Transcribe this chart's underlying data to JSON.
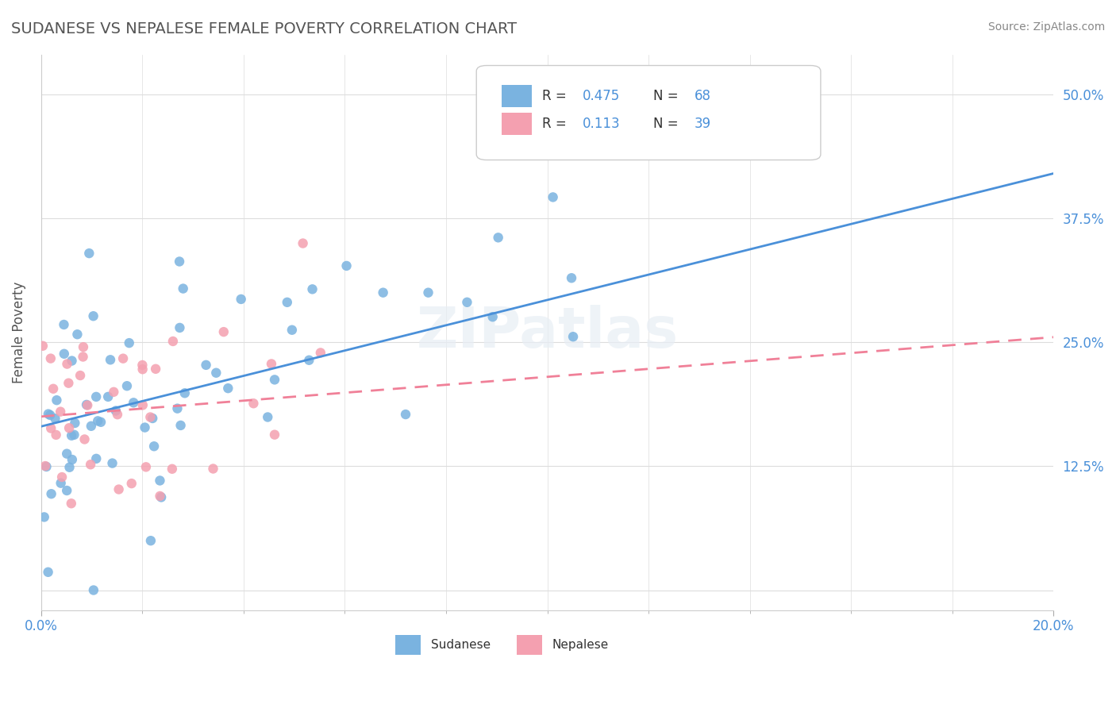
{
  "title": "SUDANESE VS NEPALESE FEMALE POVERTY CORRELATION CHART",
  "source": "Source: ZipAtlas.com",
  "xlabel": "",
  "ylabel": "Female Poverty",
  "xlim": [
    0.0,
    0.2
  ],
  "ylim": [
    -0.02,
    0.54
  ],
  "yticks": [
    0.0,
    0.125,
    0.25,
    0.375,
    0.5
  ],
  "ytick_labels": [
    "",
    "12.5%",
    "25.0%",
    "37.5%",
    "50.0%"
  ],
  "xticks": [
    0.0,
    0.2
  ],
  "xtick_labels": [
    "0.0%",
    "20.0%"
  ],
  "sudanese_R": 0.475,
  "sudanese_N": 68,
  "nepalese_R": 0.113,
  "nepalese_N": 39,
  "sudanese_color": "#7ab3e0",
  "nepalese_color": "#f4a0b0",
  "sudanese_line_color": "#4a90d9",
  "nepalese_line_color": "#f08098",
  "watermark": "ZIPatlas",
  "background_color": "#ffffff",
  "grid_color": "#dddddd"
}
